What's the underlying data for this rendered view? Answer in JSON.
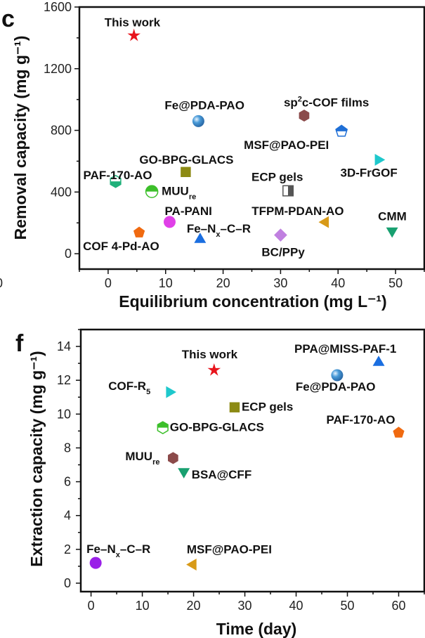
{
  "fragment_tick": "0",
  "chart_data": [
    {
      "type": "scatter",
      "panel_label": "c",
      "xlabel": "Equilibrium concentration (mg L⁻¹)",
      "ylabel": "Removal capacity (mg g⁻¹)",
      "xlim": [
        -5,
        55
      ],
      "ylim": [
        -100,
        1600
      ],
      "xticks": [
        0,
        10,
        20,
        30,
        40,
        50
      ],
      "yticks": [
        0,
        400,
        800,
        1200,
        1600
      ],
      "grid": false,
      "points": [
        {
          "label": "This work",
          "x": 4.5,
          "y": 1415,
          "marker": "star",
          "color": "#e8141c"
        },
        {
          "label": "Fe@PDA-PAO",
          "x": 15.7,
          "y": 860,
          "marker": "sphere",
          "color": "#4a9bd8"
        },
        {
          "label": "sp",
          "label_sup": "2",
          "label_after": "c-COF films",
          "x": 34.1,
          "y": 896,
          "marker": "hexagon",
          "color": "#8b4a4a"
        },
        {
          "label": "MSF@PAO-PEI",
          "x": 40.6,
          "y": 794,
          "marker": "pentagon",
          "color": "#1f6fd6",
          "half": "top"
        },
        {
          "label": "3D-FrGOF",
          "x": 47.0,
          "y": 609,
          "marker": "triangle-right",
          "color": "#1ec8cc"
        },
        {
          "label": "GO-BPG-GLACS",
          "x": 13.5,
          "y": 530,
          "marker": "square",
          "color": "#8c8a14"
        },
        {
          "label": "PAF-170-AO",
          "x": 1.3,
          "y": 469,
          "marker": "hexagon",
          "color": "#1fb07a",
          "half": "bottom"
        },
        {
          "label": "MUU",
          "label_sub": "re",
          "x": 7.6,
          "y": 403,
          "marker": "circle",
          "color": "#3cbf2a",
          "half": "top"
        },
        {
          "label": "ECP gels",
          "x": 31.3,
          "y": 408,
          "marker": "square",
          "color": "#555555",
          "half": "right"
        },
        {
          "label": "PA-PANI",
          "x": 10.7,
          "y": 206,
          "marker": "circle",
          "color": "#e040e8"
        },
        {
          "label": "TFPM-PDAN-AO",
          "x": 37.8,
          "y": 205,
          "marker": "triangle-left",
          "color": "#d89a18"
        },
        {
          "label": "CMM",
          "x": 49.4,
          "y": 148,
          "marker": "triangle-down",
          "color": "#18a070"
        },
        {
          "label": "COF 4-Pd-AO",
          "x": 5.4,
          "y": 137,
          "marker": "pentagon",
          "color": "#f06a10"
        },
        {
          "label": "Fe–N",
          "label_sub": "x",
          "label_after": "–C–R",
          "x": 16.0,
          "y": 92,
          "marker": "triangle-up",
          "color": "#1a6ee0"
        },
        {
          "label": "BC/PPy",
          "x": 30.0,
          "y": 121,
          "marker": "diamond",
          "color": "#c080e0"
        }
      ]
    },
    {
      "type": "scatter",
      "panel_label": "f",
      "xlabel": "Time (day)",
      "ylabel": "Extraction capacity (mg g⁻¹)",
      "xlim": [
        -2,
        65
      ],
      "ylim": [
        -0.5,
        15
      ],
      "xticks": [
        0,
        10,
        20,
        30,
        40,
        50,
        60
      ],
      "yticks": [
        0,
        2,
        4,
        6,
        8,
        10,
        12,
        14
      ],
      "grid": false,
      "points": [
        {
          "label": "This work",
          "x": 24.0,
          "y": 12.6,
          "marker": "star",
          "color": "#e8141c"
        },
        {
          "label": "PPA@MISS-PAF-1",
          "x": 56.1,
          "y": 13.05,
          "marker": "triangle-up",
          "color": "#1a6ee0"
        },
        {
          "label": "Fe@PDA-PAO",
          "x": 48.0,
          "y": 12.3,
          "marker": "sphere",
          "color": "#4a9bd8"
        },
        {
          "label": "COF-R",
          "label_sub": "5",
          "x": 15.3,
          "y": 11.3,
          "marker": "triangle-right",
          "color": "#1ec8cc"
        },
        {
          "label": "ECP gels",
          "x": 28.0,
          "y": 10.4,
          "marker": "square",
          "color": "#8c8a14"
        },
        {
          "label": "GO-BPG-GLACS",
          "x": 14.0,
          "y": 9.2,
          "marker": "hexagon",
          "color": "#3cbf2a",
          "half": "top"
        },
        {
          "label": "PAF-170-AO",
          "x": 60.0,
          "y": 8.9,
          "marker": "pentagon",
          "color": "#f06a10"
        },
        {
          "label": "MUU",
          "label_sub": "re",
          "x": 16.0,
          "y": 7.4,
          "marker": "hexagon",
          "color": "#8b4a4a"
        },
        {
          "label": "BSA@CFF",
          "x": 18.1,
          "y": 6.6,
          "marker": "triangle-down",
          "color": "#18a070"
        },
        {
          "label": "Fe–N",
          "label_sub": "x",
          "label_after": "–C–R",
          "x": 0.9,
          "y": 1.2,
          "marker": "circle",
          "color": "#9a20e8"
        },
        {
          "label": "MSF@PAO-PEI",
          "x": 19.9,
          "y": 1.1,
          "marker": "triangle-left",
          "color": "#d89a18"
        }
      ]
    }
  ]
}
